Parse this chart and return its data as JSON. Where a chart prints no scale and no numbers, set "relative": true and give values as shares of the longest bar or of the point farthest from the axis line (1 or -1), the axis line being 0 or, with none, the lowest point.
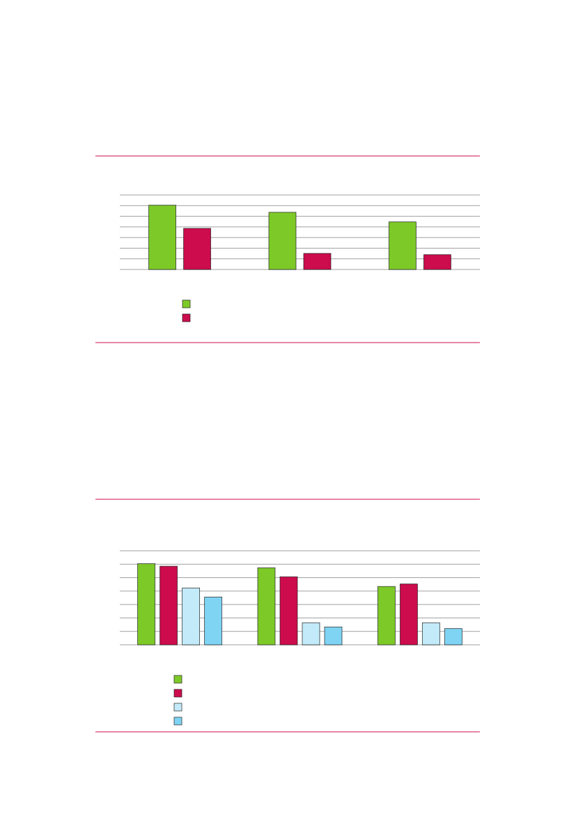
{
  "chart_data": [
    {
      "type": "bar",
      "relative": true,
      "grid": true,
      "categories": [
        null,
        null,
        null
      ],
      "series": [
        {
          "color": "#7dc928",
          "values": [
            1,
            0.89,
            0.74
          ]
        },
        {
          "color": "#cc0c4c",
          "values": [
            0.64,
            0.25,
            0.23
          ]
        }
      ]
    },
    {
      "type": "bar",
      "relative": true,
      "grid": true,
      "categories": [
        null,
        null,
        null
      ],
      "series": [
        {
          "color": "#7dc928",
          "values": [
            1,
            0.95,
            0.72
          ]
        },
        {
          "color": "#cc0c4c",
          "values": [
            0.97,
            0.84,
            0.75
          ]
        },
        {
          "color": "#c2eaf9",
          "values": [
            0.7,
            0.27,
            0.27
          ]
        },
        {
          "color": "#7fd3f3",
          "values": [
            0.59,
            0.22,
            0.2
          ]
        }
      ]
    }
  ]
}
